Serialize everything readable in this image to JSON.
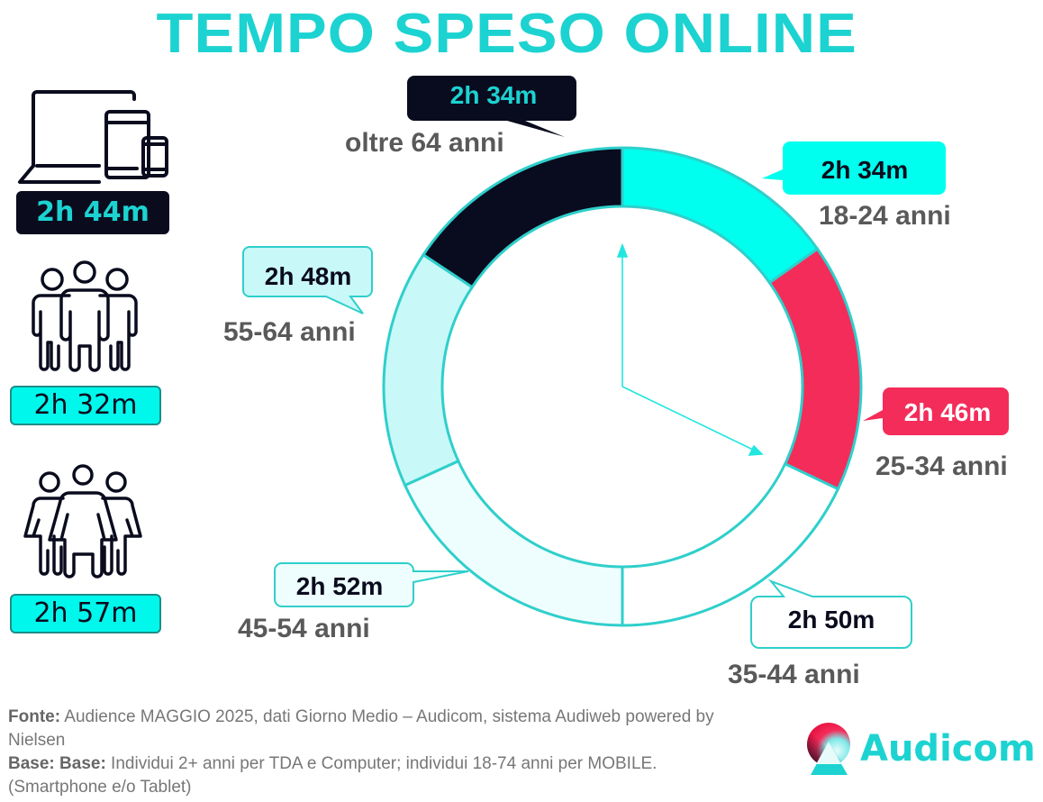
{
  "header": {
    "title": "TEMPO SPESO ONLINE"
  },
  "left_panel": {
    "items": [
      {
        "icon": "devices-icon",
        "value": "2h 44m",
        "label_style": "dark"
      },
      {
        "icon": "men-group-icon",
        "value": "2h 32m",
        "label_style": "cyan"
      },
      {
        "icon": "women-group-icon",
        "value": "2h 57m",
        "label_style": "cyan"
      }
    ]
  },
  "colors": {
    "accent": "#1CD3D1",
    "dark": "#090C1E",
    "cyan": "#00FFEE",
    "red": "#F42C5A",
    "white": "#FFFFFF",
    "pale": "#EEFDFD",
    "light_cyan": "#C9F8F8",
    "label_gray": "#595959"
  },
  "chart_data": {
    "type": "pie",
    "subtype": "donut",
    "title": "TEMPO SPESO ONLINE",
    "categories": [
      "18-24 anni",
      "25-34 anni",
      "35-44 anni",
      "45-54 anni",
      "55-64 anni",
      "oltre 64 anni"
    ],
    "value_labels": [
      "2h 34m",
      "2h 46m",
      "2h 50m",
      "2h 52m",
      "2h 48m",
      "2h 34m"
    ],
    "values_minutes": [
      154,
      166,
      170,
      172,
      168,
      154
    ],
    "segment_angles_deg": [
      [
        0,
        54.8
      ],
      [
        54.8,
        115.4
      ],
      [
        115.4,
        180
      ],
      [
        180,
        245.6
      ],
      [
        245.6,
        303.5
      ],
      [
        303.5,
        360
      ]
    ],
    "segment_colors": [
      "#00FFEE",
      "#F42C5A",
      "#FFFFFF",
      "#EEFDFD",
      "#C9F8F8",
      "#090C1E"
    ],
    "center": [
      691,
      429
    ],
    "outer_radius": 265,
    "inner_radius": 200,
    "clock_hands": {
      "minute_tip": [
        691,
        275
      ],
      "hour_tip": [
        845,
        505
      ]
    },
    "summary": {
      "total": "2h 44m",
      "men": "2h 32m",
      "women": "2h 57m"
    }
  },
  "callouts": [
    {
      "age": "oltre 64 anni",
      "value": "2h 34m"
    },
    {
      "age": "18-24 anni",
      "value": "2h 34m"
    },
    {
      "age": "55-64 anni",
      "value": "2h 48m"
    },
    {
      "age": "25-34 anni",
      "value": "2h 46m"
    },
    {
      "age": "45-54 anni",
      "value": "2h 52m"
    },
    {
      "age": "35-44 anni",
      "value": "2h 50m"
    }
  ],
  "footer": {
    "source_label": "Fonte:",
    "source_text": " Audience MAGGIO 2025, dati Giorno Medio – Audicom, sistema Audiweb powered by Nielsen",
    "base_label": "Base:  Base:",
    "base_text": "  Individui 2+ anni per TDA e Computer; individui 18-74 anni per MOBILE.(Smartphone e/o Tablet)"
  },
  "brand": {
    "name": "Audicom"
  }
}
